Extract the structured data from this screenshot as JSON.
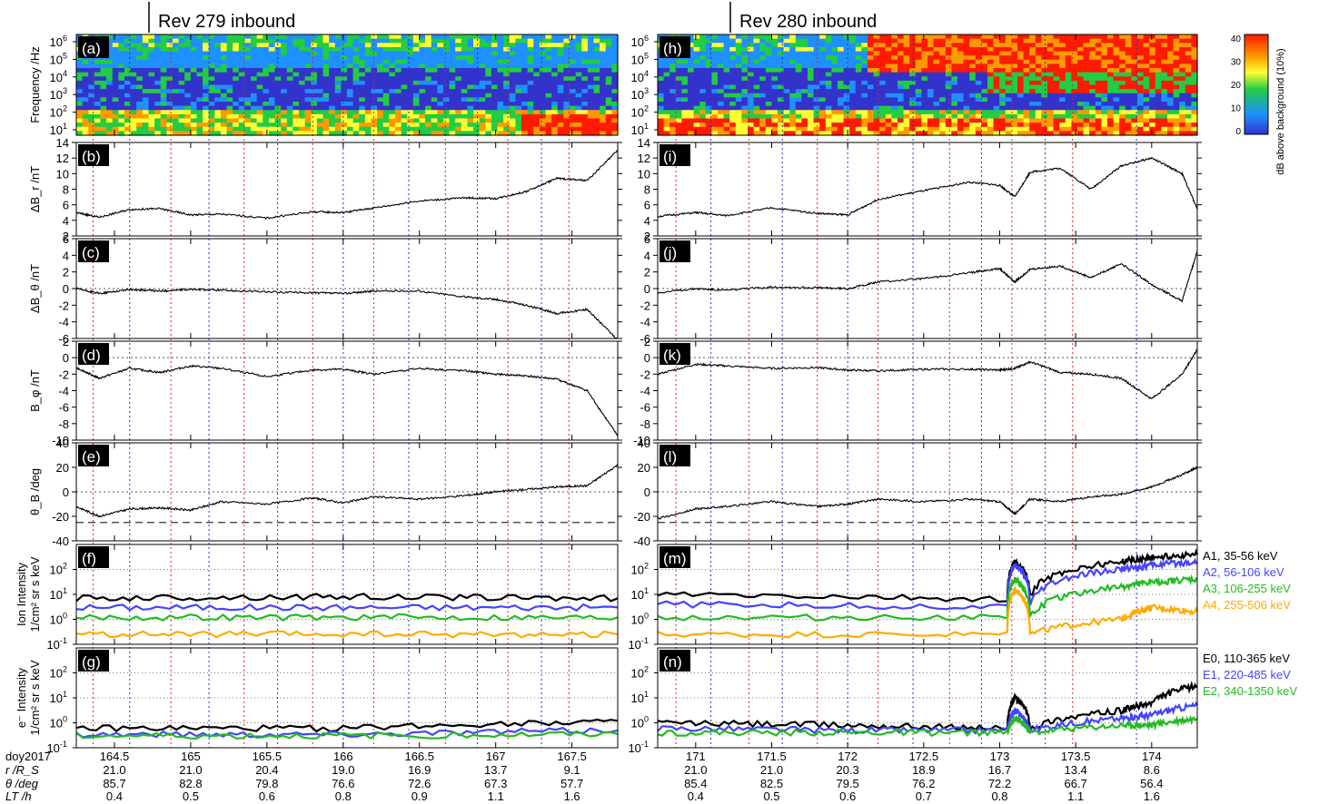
{
  "figure": {
    "colorbar": {
      "label": "dB above background (10%)",
      "ticks": [
        "40",
        "30",
        "20",
        "10",
        "0"
      ],
      "colors": [
        "#3333cc",
        "#1e90ff",
        "#22cc44",
        "#ffff33",
        "#ff9900",
        "#ff1a00"
      ]
    },
    "legend_ions": [
      {
        "name": "A1, 35-56 keV",
        "color": "#000000"
      },
      {
        "name": "A2, 56-106 keV",
        "color": "#4444ff"
      },
      {
        "name": "A3, 106-255 keV",
        "color": "#22bb22"
      },
      {
        "name": "A4, 255-506 keV",
        "color": "#ffaa00"
      }
    ],
    "legend_electrons": [
      {
        "name": "E0, 110-365 keV",
        "color": "#000000"
      },
      {
        "name": "E1, 220-485 keV",
        "color": "#4444ff"
      },
      {
        "name": "E2, 340-1350 keV",
        "color": "#22bb22"
      }
    ],
    "row_labels": [
      "doy2017",
      "r /R_S",
      "θ /deg",
      "LT /h"
    ]
  },
  "chart_data": [
    {
      "type": "line",
      "title": "Rev 279 inbound",
      "panel_letters": [
        "(a)",
        "(b)",
        "(c)",
        "(d)",
        "(e)",
        "(f)",
        "(g)"
      ],
      "x": {
        "label": "doy2017",
        "range": [
          164.25,
          167.8
        ],
        "ticks": [
          "164.5",
          "165",
          "165.5",
          "166",
          "166.5",
          "167",
          "167.5"
        ]
      },
      "ephemeris": {
        "r": [
          "21.0",
          "21.0",
          "20.4",
          "19.0",
          "16.9",
          "13.7",
          "9.1"
        ],
        "theta": [
          "85.7",
          "82.8",
          "79.8",
          "76.6",
          "72.6",
          "67.3",
          "57.7"
        ],
        "lt": [
          "0.4",
          "0.5",
          "0.6",
          "0.8",
          "0.9",
          "1.1",
          "1.6"
        ]
      },
      "red_lines": [
        164.36,
        164.87,
        165.35,
        165.8,
        166.2,
        166.67,
        167.08,
        167.48
      ],
      "blue_lines": [
        164.6,
        165.12,
        165.57,
        166.0,
        166.43,
        166.88,
        167.3
      ],
      "series": [
        {
          "panel": "dBr",
          "name": "ΔB_r",
          "x": [
            164.25,
            164.4,
            164.6,
            164.8,
            165.0,
            165.2,
            165.5,
            165.8,
            166.0,
            166.2,
            166.5,
            166.8,
            167.0,
            167.2,
            167.4,
            167.6,
            167.8
          ],
          "y": [
            5.0,
            4.4,
            5.4,
            5.5,
            4.7,
            4.8,
            4.3,
            5.1,
            5.0,
            5.6,
            6.5,
            6.9,
            6.8,
            7.7,
            9.4,
            9.1,
            13.0
          ]
        },
        {
          "panel": "dBtheta",
          "name": "ΔB_θ",
          "x": [
            164.25,
            164.4,
            164.6,
            164.8,
            165.0,
            165.2,
            165.5,
            165.8,
            166.0,
            166.2,
            166.5,
            166.8,
            167.0,
            167.2,
            167.4,
            167.6,
            167.8
          ],
          "y": [
            0.0,
            -0.6,
            -0.1,
            -0.3,
            -0.1,
            -0.2,
            -0.4,
            -0.5,
            -0.6,
            -0.3,
            -0.3,
            -1.0,
            -1.3,
            -2.0,
            -3.0,
            -2.5,
            -6.2
          ]
        },
        {
          "panel": "Bphi",
          "name": "B_φ",
          "x": [
            164.25,
            164.4,
            164.6,
            164.8,
            165.0,
            165.2,
            165.5,
            165.8,
            166.0,
            166.2,
            166.5,
            166.8,
            167.0,
            167.2,
            167.4,
            167.6,
            167.8
          ],
          "y": [
            -1.2,
            -2.5,
            -1.3,
            -1.8,
            -1.0,
            -1.3,
            -2.3,
            -1.5,
            -1.4,
            -2.0,
            -1.3,
            -1.6,
            -2.0,
            -2.2,
            -2.6,
            -4.0,
            -9.5
          ]
        },
        {
          "panel": "thetaB",
          "name": "θ_B",
          "x": [
            164.25,
            164.4,
            164.6,
            164.8,
            165.0,
            165.2,
            165.5,
            165.8,
            166.0,
            166.2,
            166.5,
            166.8,
            167.0,
            167.2,
            167.4,
            167.6,
            167.8
          ],
          "y": [
            -12,
            -20,
            -14,
            -13,
            -15,
            -8,
            -10,
            -5,
            -9,
            -4,
            -6,
            -3,
            0,
            2,
            4,
            5,
            22
          ]
        },
        {
          "panel": "ion",
          "name": "A1, 35-56 keV",
          "x": [
            164.25,
            166.0,
            167.8
          ],
          "y": [
            7,
            8,
            7
          ]
        },
        {
          "panel": "ion",
          "name": "A2, 56-106 keV",
          "x": [
            164.25,
            166.0,
            167.8
          ],
          "y": [
            3,
            3,
            3
          ]
        },
        {
          "panel": "ion",
          "name": "A3, 106-255 keV",
          "x": [
            164.25,
            166.0,
            167.8
          ],
          "y": [
            1.2,
            1.2,
            1.2
          ]
        },
        {
          "panel": "ion",
          "name": "A4, 255-506 keV",
          "x": [
            164.25,
            166.0,
            167.8
          ],
          "y": [
            0.25,
            0.25,
            0.25
          ]
        },
        {
          "panel": "elec",
          "name": "E0, 110-365 keV",
          "x": [
            164.25,
            166.0,
            167.8
          ],
          "y": [
            0.6,
            0.6,
            1.2
          ]
        },
        {
          "panel": "elec",
          "name": "E1, 220-485 keV",
          "x": [
            164.25,
            166.0,
            167.8
          ],
          "y": [
            0.35,
            0.35,
            0.5
          ]
        },
        {
          "panel": "elec",
          "name": "E2, 340-1350 keV",
          "x": [
            164.25,
            166.0,
            167.8
          ],
          "y": [
            0.3,
            0.3,
            0.35
          ]
        }
      ]
    },
    {
      "type": "line",
      "title": "Rev 280 inbound",
      "panel_letters": [
        "(h)",
        "(i)",
        "(j)",
        "(k)",
        "(l)",
        "(m)",
        "(n)"
      ],
      "x": {
        "label": "doy2017",
        "range": [
          170.75,
          174.3
        ],
        "ticks": [
          "171",
          "171.5",
          "172",
          "172.5",
          "173",
          "173.5",
          "174"
        ]
      },
      "ephemeris": {
        "r": [
          "21.0",
          "21.0",
          "20.3",
          "18.9",
          "16.7",
          "13.4",
          "8.6"
        ],
        "theta": [
          "85.4",
          "82.5",
          "79.5",
          "76.2",
          "72.2",
          "66.7",
          "56.4"
        ],
        "lt": [
          "0.4",
          "0.5",
          "0.6",
          "0.7",
          "0.8",
          "1.1",
          "1.6"
        ]
      },
      "red_lines": [
        170.87,
        171.35,
        171.8,
        172.2,
        172.67,
        173.08,
        173.48
      ],
      "blue_lines": [
        171.1,
        171.57,
        172.0,
        172.43,
        172.88,
        173.3,
        173.9
      ],
      "series": [
        {
          "panel": "dBr",
          "name": "ΔB_r",
          "x": [
            170.75,
            171.0,
            171.2,
            171.5,
            171.8,
            172.0,
            172.2,
            172.5,
            172.8,
            173.0,
            173.1,
            173.2,
            173.4,
            173.6,
            173.8,
            174.0,
            174.2,
            174.3
          ],
          "y": [
            4.5,
            5.0,
            4.6,
            5.6,
            4.9,
            4.7,
            6.7,
            7.8,
            8.9,
            8.5,
            7.0,
            10.2,
            10.7,
            8.0,
            11.0,
            12.0,
            10.0,
            5.5
          ]
        },
        {
          "panel": "dBtheta",
          "name": "ΔB_θ",
          "x": [
            170.75,
            171.0,
            171.2,
            171.5,
            171.8,
            172.0,
            172.2,
            172.5,
            172.8,
            173.0,
            173.1,
            173.2,
            173.4,
            173.6,
            173.8,
            174.0,
            174.2,
            174.3
          ],
          "y": [
            -0.5,
            0.0,
            -0.2,
            0.2,
            0.1,
            0.0,
            0.8,
            1.2,
            1.9,
            2.4,
            0.8,
            2.3,
            2.7,
            1.3,
            3.0,
            0.5,
            -1.5,
            4.5
          ]
        },
        {
          "panel": "Bphi",
          "name": "B_φ",
          "x": [
            170.75,
            171.0,
            171.2,
            171.5,
            171.8,
            172.0,
            172.2,
            172.5,
            172.8,
            173.0,
            173.1,
            173.2,
            173.4,
            173.6,
            173.8,
            174.0,
            174.2,
            174.3
          ],
          "y": [
            -2.0,
            -0.8,
            -1.0,
            -1.3,
            -1.2,
            -1.5,
            -1.6,
            -1.4,
            -1.4,
            -1.5,
            -1.3,
            -0.5,
            -1.8,
            -2.0,
            -2.5,
            -5.0,
            -2.0,
            1.0
          ]
        },
        {
          "panel": "thetaB",
          "name": "θ_B",
          "x": [
            170.75,
            171.0,
            171.2,
            171.5,
            171.8,
            172.0,
            172.2,
            172.5,
            172.8,
            173.0,
            173.1,
            173.2,
            173.4,
            173.6,
            173.8,
            174.0,
            174.2,
            174.3
          ],
          "y": [
            -22,
            -14,
            -12,
            -8,
            -12,
            -10,
            -6,
            -8,
            -6,
            -8,
            -18,
            -6,
            -8,
            -4,
            -2,
            4,
            14,
            20
          ]
        },
        {
          "panel": "ion",
          "name": "A1, 35-56 keV",
          "x": [
            170.75,
            173.05,
            173.1,
            173.2,
            173.8,
            174.0,
            174.3
          ],
          "y": [
            10,
            6,
            200,
            8,
            200,
            300,
            400
          ]
        },
        {
          "panel": "ion",
          "name": "A2, 56-106 keV",
          "x": [
            170.75,
            173.05,
            173.1,
            173.2,
            173.8,
            174.0,
            174.3
          ],
          "y": [
            4,
            3,
            150,
            3,
            100,
            150,
            200
          ]
        },
        {
          "panel": "ion",
          "name": "A3, 106-255 keV",
          "x": [
            170.75,
            173.05,
            173.1,
            173.2,
            173.8,
            174.0,
            174.3
          ],
          "y": [
            1.2,
            1.2,
            40,
            1.2,
            20,
            30,
            40
          ]
        },
        {
          "panel": "ion",
          "name": "A4, 255-506 keV",
          "x": [
            170.75,
            173.05,
            173.1,
            173.2,
            173.8,
            174.0,
            174.3
          ],
          "y": [
            0.25,
            0.25,
            15,
            0.25,
            1,
            3,
            2
          ]
        },
        {
          "panel": "elec",
          "name": "E0, 110-365 keV",
          "x": [
            170.75,
            172.0,
            173.05,
            173.1,
            173.2,
            173.8,
            174.0,
            174.3
          ],
          "y": [
            1.0,
            0.8,
            0.6,
            10,
            0.6,
            3,
            6,
            30
          ]
        },
        {
          "panel": "elec",
          "name": "E1, 220-485 keV",
          "x": [
            170.75,
            172.0,
            173.05,
            173.1,
            173.2,
            173.8,
            174.0,
            174.3
          ],
          "y": [
            0.6,
            0.5,
            0.5,
            3,
            0.5,
            1.5,
            2,
            5
          ]
        },
        {
          "panel": "elec",
          "name": "E2, 340-1350 keV",
          "x": [
            170.75,
            172.0,
            173.05,
            173.1,
            173.2,
            173.8,
            174.0,
            174.3
          ],
          "y": [
            0.4,
            0.4,
            0.4,
            1.5,
            0.4,
            0.8,
            0.8,
            1.5
          ]
        }
      ]
    }
  ],
  "panels": [
    {
      "key": "spec",
      "ylabel": "Frequency /Hz",
      "scale": "log",
      "ticks": [
        "10^6",
        "10^5",
        "10^4",
        "10^3",
        "10^2",
        "10^1"
      ]
    },
    {
      "key": "dBr",
      "ylabel": "ΔB_r /nT",
      "range": [
        2,
        14
      ],
      "ticks": [
        "14",
        "12",
        "10",
        "8",
        "6",
        "4",
        "2"
      ]
    },
    {
      "key": "dBtheta",
      "ylabel": "ΔB_θ /nT",
      "range": [
        -6,
        6
      ],
      "ticks": [
        "6",
        "4",
        "2",
        "0",
        "-2",
        "-4",
        "-6"
      ]
    },
    {
      "key": "Bphi",
      "ylabel": "B_φ /nT",
      "range": [
        -10,
        2
      ],
      "ticks": [
        "2",
        "0",
        "-2",
        "-4",
        "-6",
        "-8",
        "-10"
      ]
    },
    {
      "key": "thetaB",
      "ylabel": "θ_B /deg",
      "range": [
        -40,
        40
      ],
      "ticks": [
        "40",
        "20",
        "0",
        "-20",
        "-40"
      ]
    },
    {
      "key": "ion",
      "ylabel": "Ion Intensity 1/cm² sr s keV",
      "scale": "log",
      "range": [
        0.1,
        1000
      ],
      "ticks": [
        "10^2",
        "10^1",
        "10^0",
        "10^-1"
      ]
    },
    {
      "key": "elec",
      "ylabel": "e⁻ Intensity 1/cm² sr s keV",
      "scale": "log",
      "range": [
        0.1,
        1000
      ],
      "ticks": [
        "10^2",
        "10^1",
        "10^0",
        "10^-1"
      ]
    }
  ]
}
